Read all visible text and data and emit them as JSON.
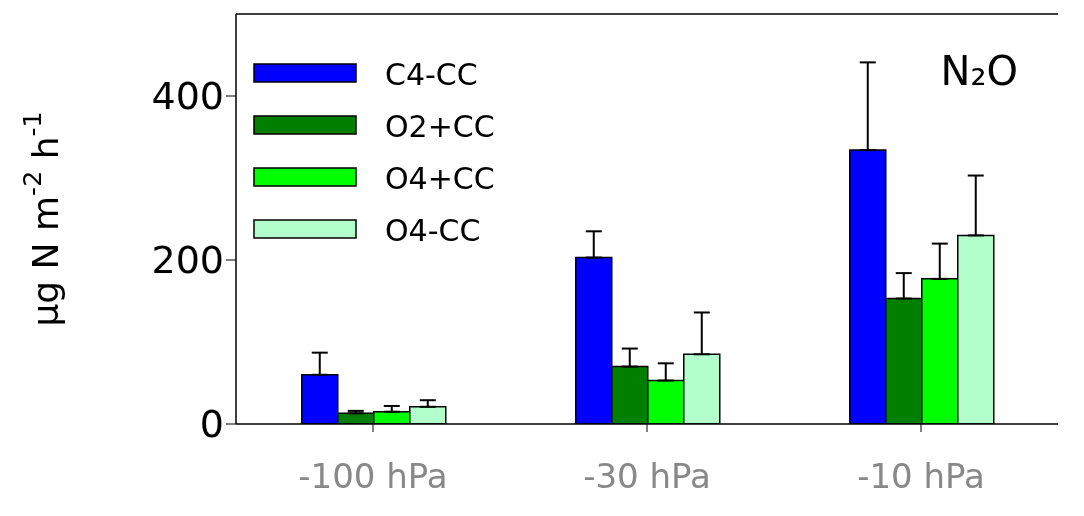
{
  "chart_data": {
    "type": "bar",
    "categories": [
      "-100 hPa",
      "-30 hPa",
      "-10 hPa"
    ],
    "ylabel": "μg N m$^{-2}$ h$^{-1}$",
    "annotations": [
      "N₂O"
    ],
    "series": [
      {
        "name": "C4-CC",
        "color": "#0000ff",
        "values": [
          60,
          203,
          334
        ],
        "errors": [
          [
            60,
            87
          ],
          [
            203,
            235
          ],
          [
            334,
            441
          ]
        ]
      },
      {
        "name": "O2+CC",
        "color": "#007f00",
        "values": [
          13,
          70,
          153
        ],
        "errors": [
          [
            13,
            16
          ],
          [
            70,
            92
          ],
          [
            153,
            184
          ]
        ]
      },
      {
        "name": "O4+CC",
        "color": "#00ff00",
        "values": [
          15,
          53,
          177
        ],
        "errors": [
          [
            15,
            22
          ],
          [
            53,
            74
          ],
          [
            177,
            220
          ]
        ]
      },
      {
        "name": "O4-CC",
        "color": "#b3ffcc",
        "values": [
          21,
          85,
          230
        ],
        "errors": [
          [
            21,
            29
          ],
          [
            85,
            136
          ],
          [
            230,
            303
          ]
        ]
      }
    ],
    "ylim": [
      0,
      500
    ],
    "yticks": [
      0,
      200,
      400
    ],
    "legend": "top left",
    "grid": false
  }
}
